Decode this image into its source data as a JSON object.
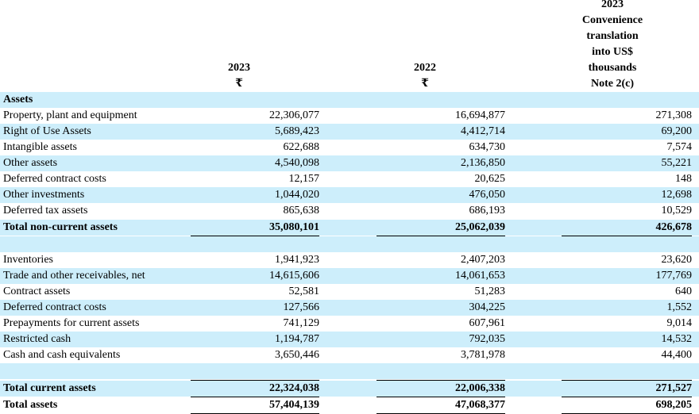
{
  "header": {
    "col1": {
      "year": "2023",
      "currency": "₹"
    },
    "col2": {
      "year": "2022",
      "currency": "₹"
    },
    "col3": {
      "lines": [
        "2023",
        "Convenience",
        "translation",
        "into US$",
        "thousands",
        "Note 2(c)"
      ]
    }
  },
  "section_title": "Assets",
  "noncurrent_rows": [
    {
      "label": "Property, plant and equipment",
      "v2023": "22,306,077",
      "v2022": "16,694,877",
      "usd": "271,308"
    },
    {
      "label": "Right of Use Assets",
      "v2023": "5,689,423",
      "v2022": "4,412,714",
      "usd": "69,200"
    },
    {
      "label": "Intangible assets",
      "v2023": "622,688",
      "v2022": "634,730",
      "usd": "7,574"
    },
    {
      "label": "Other assets",
      "v2023": "4,540,098",
      "v2022": "2,136,850",
      "usd": "55,221"
    },
    {
      "label": "Deferred contract costs",
      "v2023": "12,157",
      "v2022": "20,625",
      "usd": "148"
    },
    {
      "label": "Other investments",
      "v2023": "1,044,020",
      "v2022": "476,050",
      "usd": "12,698"
    },
    {
      "label": "Deferred tax assets",
      "v2023": "865,638",
      "v2022": "686,193",
      "usd": "10,529"
    }
  ],
  "total_noncurrent": {
    "label": "Total non-current assets",
    "v2023": "35,080,101",
    "v2022": "25,062,039",
    "usd": "426,678"
  },
  "current_rows": [
    {
      "label": "Inventories",
      "v2023": "1,941,923",
      "v2022": "2,407,203",
      "usd": "23,620"
    },
    {
      "label": "Trade and other receivables, net",
      "v2023": "14,615,606",
      "v2022": "14,061,653",
      "usd": "177,769"
    },
    {
      "label": "Contract assets",
      "v2023": "52,581",
      "v2022": "51,283",
      "usd": "640"
    },
    {
      "label": "Deferred contract costs",
      "v2023": "127,566",
      "v2022": "304,225",
      "usd": "1,552"
    },
    {
      "label": "Prepayments for current assets",
      "v2023": "741,129",
      "v2022": "607,961",
      "usd": "9,014"
    },
    {
      "label": "Restricted cash",
      "v2023": "1,194,787",
      "v2022": "792,035",
      "usd": "14,532"
    },
    {
      "label": "Cash and cash equivalents",
      "v2023": "3,650,446",
      "v2022": "3,781,978",
      "usd": "44,400"
    }
  ],
  "total_current": {
    "label": "Total current assets",
    "v2023": "22,324,038",
    "v2022": "22,006,338",
    "usd": "271,527"
  },
  "total_assets": {
    "label": "Total assets",
    "v2023": "57,404,139",
    "v2022": "47,068,377",
    "usd": "698,205"
  },
  "colors": {
    "row_shade": "#cdeefb",
    "text": "#000000"
  }
}
